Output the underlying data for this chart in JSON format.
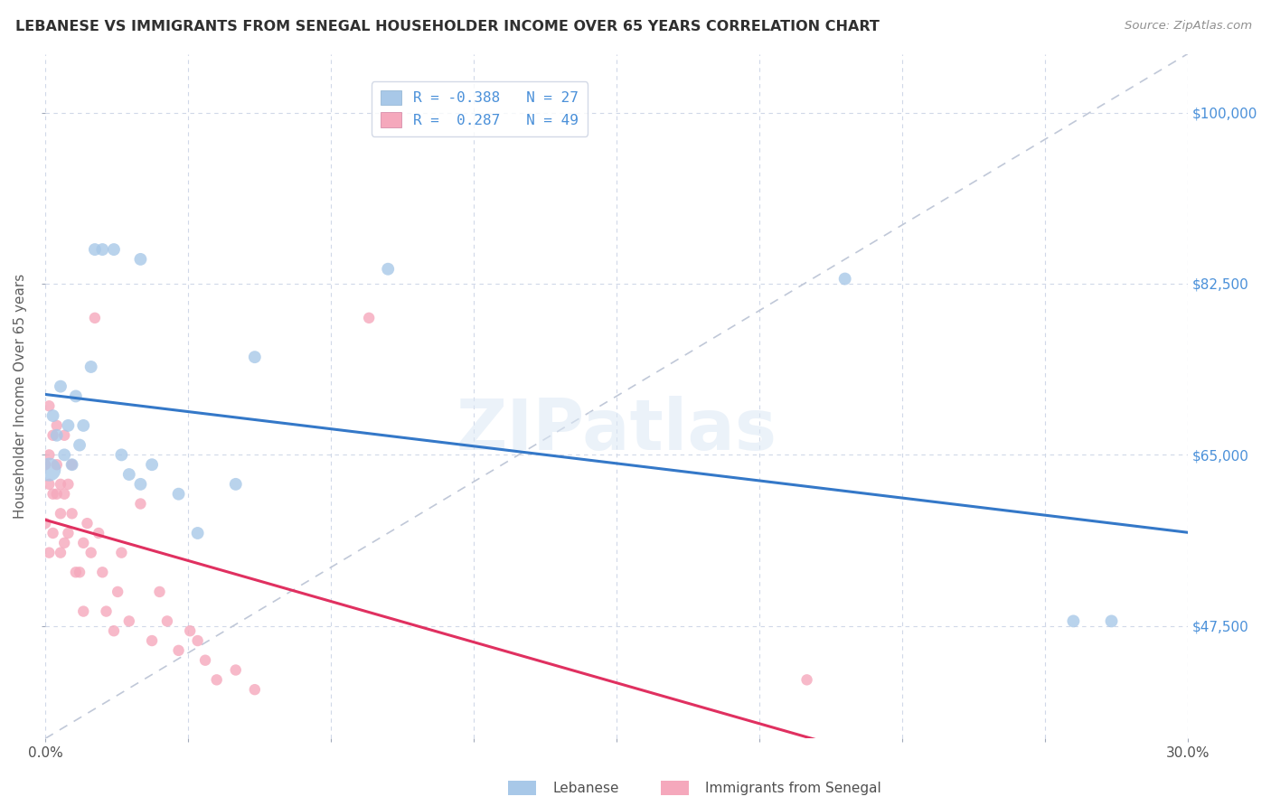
{
  "title": "LEBANESE VS IMMIGRANTS FROM SENEGAL HOUSEHOLDER INCOME OVER 65 YEARS CORRELATION CHART",
  "source": "Source: ZipAtlas.com",
  "ylabel": "Householder Income Over 65 years",
  "xlim": [
    0.0,
    0.3
  ],
  "ylim": [
    36000,
    106000
  ],
  "xtick_values": [
    0.0,
    0.0375,
    0.075,
    0.1125,
    0.15,
    0.1875,
    0.225,
    0.2625,
    0.3
  ],
  "xtick_labels": [
    "0.0%",
    "",
    "",
    "",
    "",
    "",
    "",
    "",
    "30.0%"
  ],
  "ytick_values": [
    47500,
    65000,
    82500,
    100000
  ],
  "ytick_labels": [
    "$47,500",
    "$65,000",
    "$82,500",
    "$100,000"
  ],
  "blue_color": "#a8c8e8",
  "pink_color": "#f5a8bc",
  "blue_line_color": "#3478c8",
  "pink_line_color": "#e03060",
  "watermark": "ZIPatlas",
  "tick_label_color_right": "#4a90d9",
  "background_color": "#ffffff",
  "grid_color": "#d0d8e8",
  "lebanese_x": [
    0.001,
    0.002,
    0.003,
    0.004,
    0.005,
    0.006,
    0.007,
    0.008,
    0.009,
    0.01,
    0.012,
    0.013,
    0.015,
    0.018,
    0.02,
    0.022,
    0.025,
    0.025,
    0.028,
    0.035,
    0.04,
    0.05,
    0.055,
    0.09,
    0.21,
    0.27,
    0.28
  ],
  "lebanese_y": [
    63500,
    69000,
    67000,
    72000,
    65000,
    68000,
    64000,
    71000,
    66000,
    68000,
    74000,
    86000,
    86000,
    86000,
    65000,
    63000,
    62000,
    85000,
    64000,
    61000,
    57000,
    62000,
    75000,
    84000,
    83000,
    48000,
    48000
  ],
  "lebanese_size": 100,
  "lebanese_large_idx": 0,
  "lebanese_large_size": 350,
  "senegal_x": [
    0.0,
    0.0,
    0.001,
    0.001,
    0.001,
    0.001,
    0.002,
    0.002,
    0.002,
    0.003,
    0.003,
    0.003,
    0.004,
    0.004,
    0.004,
    0.005,
    0.005,
    0.005,
    0.006,
    0.006,
    0.007,
    0.007,
    0.008,
    0.009,
    0.01,
    0.01,
    0.011,
    0.012,
    0.013,
    0.014,
    0.015,
    0.016,
    0.018,
    0.019,
    0.02,
    0.022,
    0.025,
    0.028,
    0.03,
    0.032,
    0.035,
    0.038,
    0.04,
    0.042,
    0.045,
    0.05,
    0.055,
    0.085,
    0.2
  ],
  "senegal_y": [
    64000,
    58000,
    70000,
    65000,
    62000,
    55000,
    67000,
    61000,
    57000,
    68000,
    64000,
    61000,
    59000,
    62000,
    55000,
    67000,
    61000,
    56000,
    62000,
    57000,
    64000,
    59000,
    53000,
    53000,
    56000,
    49000,
    58000,
    55000,
    79000,
    57000,
    53000,
    49000,
    47000,
    51000,
    55000,
    48000,
    60000,
    46000,
    51000,
    48000,
    45000,
    47000,
    46000,
    44000,
    42000,
    43000,
    41000,
    79000,
    42000
  ],
  "senegal_size": 80,
  "diag_line_x": [
    0.0,
    0.3
  ],
  "diag_line_y": [
    36000,
    106000
  ],
  "legend_blue_text": "R = -0.388   N = 27",
  "legend_pink_text": "R =  0.287   N = 49",
  "bottom_legend_blue": "Lebanese",
  "bottom_legend_pink": "Immigrants from Senegal"
}
